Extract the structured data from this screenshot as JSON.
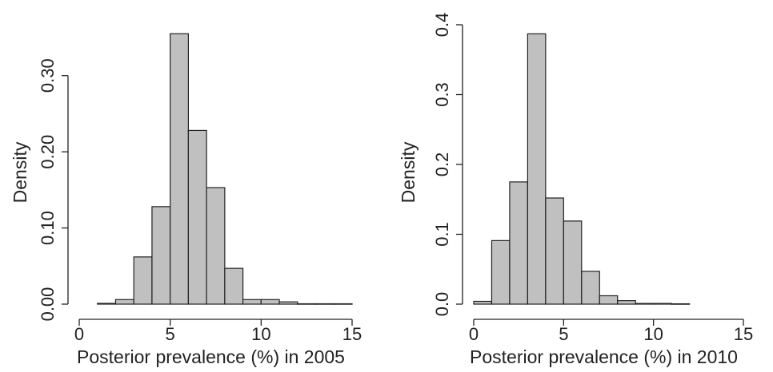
{
  "chart_data": [
    {
      "type": "bar",
      "subtype": "histogram",
      "title": "",
      "xlabel": "Posterior prevalence (%) in 2005",
      "ylabel": "Density",
      "xlim": [
        0,
        15
      ],
      "ylim": [
        0,
        0.35
      ],
      "xticks": [
        "0",
        "5",
        "10",
        "15"
      ],
      "yticks": [
        "0.00",
        "0.10",
        "0.20",
        "0.30"
      ],
      "bin_edges": [
        1,
        2,
        3,
        4,
        5,
        6,
        7,
        8,
        9,
        10,
        11,
        12,
        13,
        14,
        15
      ],
      "values": [
        0.001,
        0.006,
        0.062,
        0.128,
        0.355,
        0.228,
        0.153,
        0.047,
        0.006,
        0.006,
        0.003,
        0.0005,
        0.0005,
        0.0005
      ],
      "bar_color": "#c0c0c0",
      "grid": false,
      "legend": "none"
    },
    {
      "type": "bar",
      "subtype": "histogram",
      "title": "",
      "xlabel": "Posterior prevalence (%) in 2010",
      "ylabel": "Density",
      "xlim": [
        0,
        15
      ],
      "ylim": [
        0,
        0.4
      ],
      "xticks": [
        "0",
        "5",
        "10",
        "15"
      ],
      "yticks": [
        "0.0",
        "0.1",
        "0.2",
        "0.3",
        "0.4"
      ],
      "bin_edges": [
        0,
        1,
        2,
        3,
        4,
        5,
        6,
        7,
        8,
        9,
        10,
        11,
        12
      ],
      "values": [
        0.004,
        0.091,
        0.175,
        0.387,
        0.152,
        0.119,
        0.047,
        0.012,
        0.005,
        0.001,
        0.001,
        0.0005
      ],
      "bar_color": "#c0c0c0",
      "grid": false,
      "legend": "none"
    }
  ]
}
